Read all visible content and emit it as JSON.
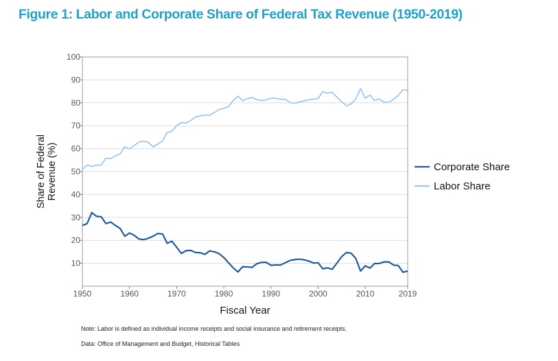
{
  "title": "Figure 1: Labor and Corporate Share of Federal Tax Revenue (1950-2019)",
  "notes": [
    "Note: Labor is defined as individual income receipts and social insurance and retirement receipts.",
    "Data: Office of Management and Budget, Historical Tables"
  ],
  "chart_data": {
    "type": "line",
    "title": "Figure 1: Labor and Corporate Share of Federal Tax Revenue (1950-2019)",
    "xlabel": "Fiscal Year",
    "ylabel": "Share of Federal Revenue (%)",
    "xlim": [
      1950,
      2019
    ],
    "ylim": [
      0,
      100
    ],
    "xticks": [
      1950,
      1960,
      1970,
      1980,
      1990,
      2000,
      2010,
      2019
    ],
    "yticks": [
      10,
      20,
      30,
      40,
      50,
      60,
      70,
      80,
      90,
      100
    ],
    "grid": "horizontal",
    "legend": "right",
    "x_start": 1950,
    "series": [
      {
        "name": "Corporate Share",
        "color": "#1f5c9e",
        "values": [
          26.5,
          27.3,
          32.1,
          30.5,
          30.3,
          27.3,
          28.0,
          26.5,
          25.2,
          21.8,
          23.2,
          22.2,
          20.6,
          20.3,
          20.9,
          21.8,
          23.0,
          22.8,
          18.7,
          19.6,
          17.0,
          14.3,
          15.5,
          15.6,
          14.7,
          14.6,
          13.9,
          15.4,
          15.0,
          14.2,
          12.5,
          10.2,
          8.0,
          6.2,
          8.5,
          8.4,
          8.2,
          9.8,
          10.4,
          10.4,
          9.1,
          9.3,
          9.2,
          10.2,
          11.2,
          11.6,
          11.8,
          11.5,
          11.0,
          10.1,
          10.2,
          7.6,
          8.0,
          7.4,
          10.1,
          12.9,
          14.7,
          14.4,
          12.1,
          6.6,
          8.9,
          7.9,
          9.9,
          9.9,
          10.6,
          10.6,
          9.2,
          9.0,
          6.1,
          6.6
        ]
      },
      {
        "name": "Labor Share",
        "color": "#9fc8f0",
        "values": [
          50.9,
          52.9,
          52.2,
          52.8,
          52.8,
          55.9,
          55.6,
          56.9,
          57.7,
          60.8,
          59.9,
          61.4,
          62.9,
          63.3,
          62.7,
          60.8,
          62.0,
          63.4,
          67.1,
          67.6,
          70.0,
          71.4,
          71.2,
          72.3,
          73.8,
          74.3,
          74.7,
          74.6,
          75.8,
          77.1,
          77.6,
          78.4,
          81.0,
          82.9,
          80.9,
          81.8,
          82.3,
          81.4,
          81.0,
          81.3,
          82.0,
          82.0,
          81.6,
          81.5,
          80.2,
          79.8,
          80.3,
          80.8,
          81.3,
          81.6,
          81.9,
          84.9,
          84.2,
          84.6,
          82.4,
          80.5,
          78.7,
          79.5,
          81.8,
          86.2,
          82.0,
          83.4,
          81.0,
          81.7,
          80.2,
          80.2,
          81.5,
          83.3,
          85.7,
          85.4
        ]
      }
    ]
  }
}
